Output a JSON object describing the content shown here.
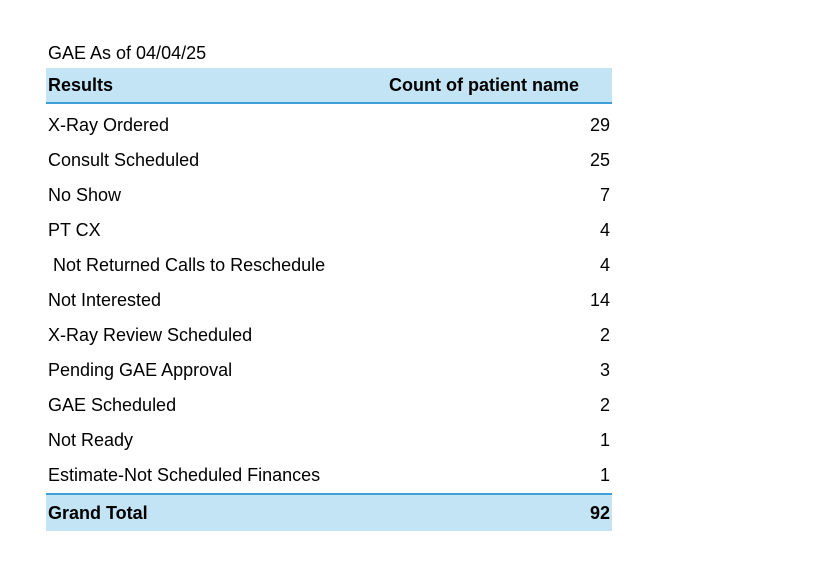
{
  "title": "GAE As of 04/04/25",
  "table": {
    "headers": {
      "label": "Results",
      "value": "Count of patient name"
    },
    "rows": [
      {
        "label": "X-Ray Ordered",
        "value": "29"
      },
      {
        "label": "Consult Scheduled",
        "value": "25"
      },
      {
        "label": "No Show",
        "value": "7"
      },
      {
        "label": "PT CX",
        "value": "4"
      },
      {
        "label": " Not Returned Calls to Reschedule",
        "value": "4"
      },
      {
        "label": "Not Interested",
        "value": "14"
      },
      {
        "label": "X-Ray Review Scheduled",
        "value": "2"
      },
      {
        "label": "Pending GAE Approval",
        "value": "3"
      },
      {
        "label": "GAE Scheduled",
        "value": "2"
      },
      {
        "label": "Not Ready",
        "value": "1"
      },
      {
        "label": "Estimate-Not Scheduled Finances",
        "value": "1"
      }
    ],
    "total": {
      "label": "Grand Total",
      "value": "92"
    }
  },
  "colors": {
    "header_fill": "#c2e4f4",
    "header_border": "#3f9fd8"
  }
}
